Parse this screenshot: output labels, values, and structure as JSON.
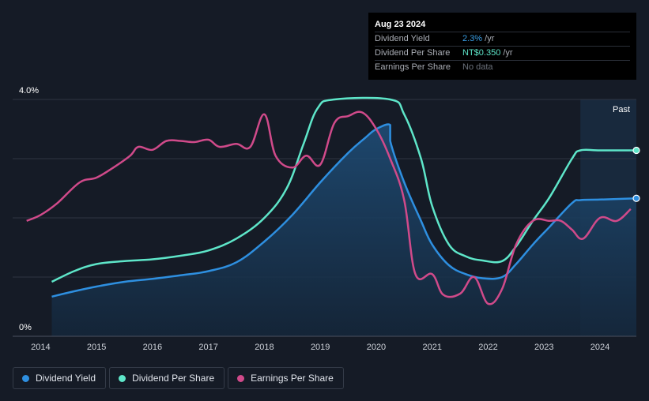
{
  "tooltip": {
    "date": "Aug 23 2024",
    "rows": [
      {
        "label": "Dividend Yield",
        "value": "2.3%",
        "unit": " /yr"
      },
      {
        "label": "Dividend Per Share",
        "value": "NT$0.350",
        "unit": " /yr"
      },
      {
        "label": "Earnings Per Share",
        "value": "No data",
        "unit": ""
      }
    ]
  },
  "legend": [
    {
      "label": "Dividend Yield",
      "color": "#2e8fe0"
    },
    {
      "label": "Dividend Per Share",
      "color": "#5ee6c9"
    },
    {
      "label": "Earnings Per Share",
      "color": "#d04a8a"
    }
  ],
  "chart_data": {
    "type": "line",
    "past_label": "Past",
    "y_axis": {
      "min": 0,
      "max": 4.0,
      "labels": [
        "4.0%",
        "0%"
      ]
    },
    "x_range": [
      2013.5,
      2024.65
    ],
    "x_ticks": [
      2014,
      2015,
      2016,
      2017,
      2018,
      2019,
      2020,
      2021,
      2022,
      2023,
      2024
    ],
    "x_tick_labels": [
      "2014",
      "2015",
      "2016",
      "2017",
      "2018",
      "2019",
      "2020",
      "2021",
      "2022",
      "2023",
      "2024"
    ],
    "forecast_start": 2023.65,
    "series": [
      {
        "name": "Dividend Yield",
        "color": "#2e8fe0",
        "fill": true,
        "points": [
          [
            2014.2,
            0.67
          ],
          [
            2014.6,
            0.76
          ],
          [
            2015.0,
            0.84
          ],
          [
            2015.5,
            0.92
          ],
          [
            2016.0,
            0.97
          ],
          [
            2016.5,
            1.03
          ],
          [
            2017.0,
            1.1
          ],
          [
            2017.5,
            1.25
          ],
          [
            2018.0,
            1.6
          ],
          [
            2018.5,
            2.05
          ],
          [
            2019.0,
            2.6
          ],
          [
            2019.5,
            3.1
          ],
          [
            2019.8,
            3.35
          ],
          [
            2020.0,
            3.5
          ],
          [
            2020.25,
            3.57
          ],
          [
            2020.25,
            3.3
          ],
          [
            2020.5,
            2.6
          ],
          [
            2020.8,
            1.95
          ],
          [
            2021.0,
            1.55
          ],
          [
            2021.3,
            1.2
          ],
          [
            2021.6,
            1.05
          ],
          [
            2021.9,
            0.98
          ],
          [
            2022.25,
            1.0
          ],
          [
            2022.5,
            1.22
          ],
          [
            2022.8,
            1.55
          ],
          [
            2023.1,
            1.85
          ],
          [
            2023.5,
            2.25
          ],
          [
            2023.65,
            2.3
          ],
          [
            2024.0,
            2.31
          ],
          [
            2024.65,
            2.33
          ]
        ]
      },
      {
        "name": "Dividend Per Share",
        "color": "#5ee6c9",
        "fill": false,
        "points": [
          [
            2014.2,
            0.92
          ],
          [
            2014.6,
            1.1
          ],
          [
            2015.0,
            1.22
          ],
          [
            2015.5,
            1.27
          ],
          [
            2016.0,
            1.3
          ],
          [
            2016.5,
            1.36
          ],
          [
            2017.0,
            1.45
          ],
          [
            2017.5,
            1.65
          ],
          [
            2018.0,
            2.0
          ],
          [
            2018.4,
            2.5
          ],
          [
            2018.7,
            3.25
          ],
          [
            2018.95,
            3.85
          ],
          [
            2019.25,
            4.0
          ],
          [
            2020.25,
            4.0
          ],
          [
            2020.5,
            3.75
          ],
          [
            2020.8,
            3.0
          ],
          [
            2021.0,
            2.2
          ],
          [
            2021.3,
            1.55
          ],
          [
            2021.6,
            1.35
          ],
          [
            2021.9,
            1.28
          ],
          [
            2022.25,
            1.27
          ],
          [
            2022.5,
            1.52
          ],
          [
            2022.8,
            1.95
          ],
          [
            2023.1,
            2.35
          ],
          [
            2023.5,
            3.0
          ],
          [
            2023.65,
            3.14
          ],
          [
            2024.0,
            3.14
          ],
          [
            2024.65,
            3.14
          ]
        ]
      },
      {
        "name": "Earnings Per Share",
        "color": "#d04a8a",
        "fill": false,
        "points": [
          [
            2013.75,
            1.95
          ],
          [
            2014.0,
            2.05
          ],
          [
            2014.3,
            2.25
          ],
          [
            2014.7,
            2.6
          ],
          [
            2015.0,
            2.68
          ],
          [
            2015.3,
            2.85
          ],
          [
            2015.6,
            3.05
          ],
          [
            2015.75,
            3.2
          ],
          [
            2016.0,
            3.15
          ],
          [
            2016.25,
            3.3
          ],
          [
            2016.5,
            3.3
          ],
          [
            2016.75,
            3.28
          ],
          [
            2017.0,
            3.32
          ],
          [
            2017.2,
            3.2
          ],
          [
            2017.5,
            3.25
          ],
          [
            2017.75,
            3.2
          ],
          [
            2018.0,
            3.75
          ],
          [
            2018.2,
            3.05
          ],
          [
            2018.5,
            2.85
          ],
          [
            2018.75,
            3.05
          ],
          [
            2019.0,
            2.9
          ],
          [
            2019.25,
            3.6
          ],
          [
            2019.5,
            3.72
          ],
          [
            2019.75,
            3.78
          ],
          [
            2020.0,
            3.5
          ],
          [
            2020.25,
            3.0
          ],
          [
            2020.5,
            2.3
          ],
          [
            2020.7,
            1.05
          ],
          [
            2021.0,
            1.05
          ],
          [
            2021.2,
            0.7
          ],
          [
            2021.5,
            0.72
          ],
          [
            2021.75,
            1.0
          ],
          [
            2022.0,
            0.55
          ],
          [
            2022.25,
            0.8
          ],
          [
            2022.5,
            1.55
          ],
          [
            2022.8,
            1.95
          ],
          [
            2023.1,
            1.95
          ],
          [
            2023.3,
            1.95
          ],
          [
            2023.5,
            1.8
          ],
          [
            2023.7,
            1.65
          ],
          [
            2024.0,
            2.0
          ],
          [
            2024.3,
            1.95
          ],
          [
            2024.55,
            2.15
          ]
        ]
      }
    ]
  }
}
